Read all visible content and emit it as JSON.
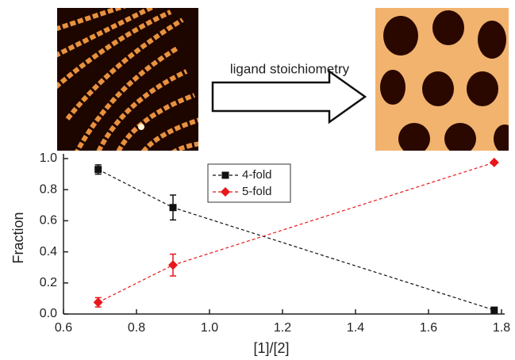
{
  "annotation": "ligand stoichiometry",
  "chart_data": {
    "type": "line",
    "x": [
      0.695,
      0.9,
      1.78
    ],
    "series": [
      {
        "name": "4-fold",
        "color": "#111111",
        "marker": "square",
        "values": [
          0.93,
          0.685,
          0.025
        ],
        "errors": [
          0.03,
          0.08,
          0.01
        ]
      },
      {
        "name": "5-fold",
        "color": "#e8171b",
        "marker": "diamond",
        "values": [
          0.075,
          0.315,
          0.975
        ],
        "errors": [
          0.03,
          0.07,
          0.005
        ]
      }
    ],
    "xlabel": "[1]/[2]",
    "ylabel": "Fraction",
    "xlim": [
      0.6,
      1.8
    ],
    "ylim": [
      0,
      1.0
    ],
    "xticks": [
      {
        "value": 0.6,
        "label": "0.6"
      },
      {
        "value": 0.8,
        "label": "0.8"
      },
      {
        "value": 1.0,
        "label": "1.0"
      },
      {
        "value": 1.2,
        "label": "1.2"
      },
      {
        "value": 1.4,
        "label": "1.4"
      },
      {
        "value": 1.6,
        "label": "1.6"
      },
      {
        "value": 1.8,
        "label": "1.8"
      }
    ],
    "yticks": [
      {
        "value": 0,
        "label": "0.0"
      },
      {
        "value": 0.2,
        "label": "0.2"
      },
      {
        "value": 0.4,
        "label": "0.4"
      },
      {
        "value": 0.6,
        "label": "0.6"
      },
      {
        "value": 0.8,
        "label": "0.8"
      },
      {
        "value": 1.0,
        "label": "1.0"
      }
    ],
    "legend": "top-center"
  }
}
